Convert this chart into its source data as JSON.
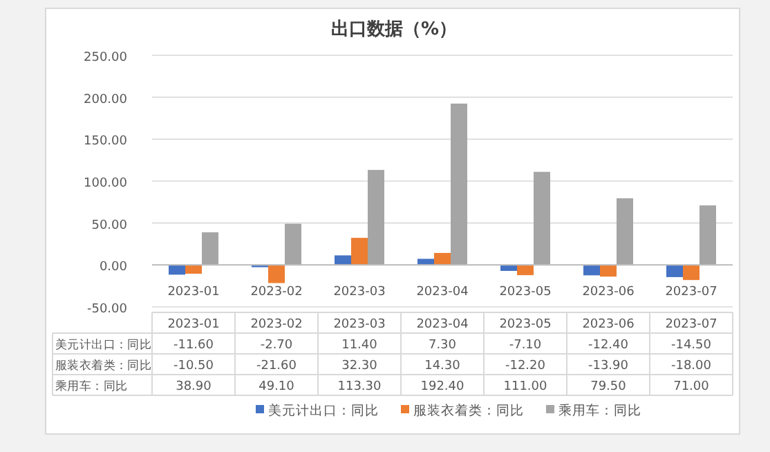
{
  "chart_data": {
    "type": "bar",
    "title": "出口数据（%）",
    "categories": [
      "2023-01",
      "2023-02",
      "2023-03",
      "2023-04",
      "2023-05",
      "2023-06",
      "2023-07"
    ],
    "series": [
      {
        "name": "美元计出口：同比",
        "color": "#4472c4",
        "values": [
          -11.6,
          -2.7,
          11.4,
          7.3,
          -7.1,
          -12.4,
          -14.5
        ],
        "value_labels": [
          "-11.60",
          "-2.70",
          "11.40",
          "7.30",
          "-7.10",
          "-12.40",
          "-14.50"
        ]
      },
      {
        "name": "服装衣着类：同比",
        "color": "#ed7d31",
        "values": [
          -10.5,
          -21.6,
          32.3,
          14.3,
          -12.2,
          -13.9,
          -18.0
        ],
        "value_labels": [
          "-10.50",
          "-21.60",
          "32.30",
          "14.30",
          "-12.20",
          "-13.90",
          "-18.00"
        ]
      },
      {
        "name": "乘用车：同比",
        "color": "#a5a5a5",
        "values": [
          38.9,
          49.1,
          113.3,
          192.4,
          111.0,
          79.5,
          71.0
        ],
        "value_labels": [
          "38.90",
          "49.10",
          "113.30",
          "192.40",
          "111.00",
          "79.50",
          "71.00"
        ]
      }
    ],
    "ylim": [
      -50,
      250
    ],
    "yticks": [
      {
        "value": -50,
        "label": "-50.00"
      },
      {
        "value": 0,
        "label": "0.00"
      },
      {
        "value": 50,
        "label": "50.00"
      },
      {
        "value": 100,
        "label": "100.00"
      },
      {
        "value": 150,
        "label": "150.00"
      },
      {
        "value": 200,
        "label": "200.00"
      },
      {
        "value": 250,
        "label": "250.00"
      }
    ],
    "grid": "y",
    "legend": "bottom"
  }
}
